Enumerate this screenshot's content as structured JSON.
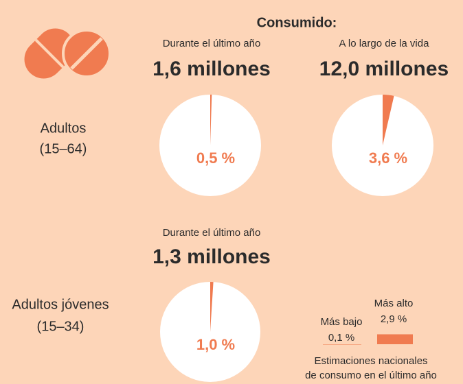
{
  "header": {
    "title": "Consumido:"
  },
  "rows": [
    {
      "label_lines": [
        "Adultos",
        "(15–64)"
      ]
    },
    {
      "label_lines": [
        "Adultos jóvenes",
        "(15–34)"
      ]
    }
  ],
  "chart_data": [
    {
      "type": "pie",
      "subtitle": "Durante el último año",
      "title": "1,6 millones",
      "values": [
        0.5
      ],
      "value_labels": [
        "0,5 %"
      ],
      "colors": [
        "#f07b50"
      ]
    },
    {
      "type": "pie",
      "subtitle": "A lo largo de la vida",
      "title": "12,0 millones",
      "values": [
        3.6
      ],
      "value_labels": [
        "3,6 %"
      ],
      "colors": [
        "#f07b50"
      ]
    },
    {
      "type": "pie",
      "subtitle": "Durante el último año",
      "title": "1,3 millones",
      "values": [
        1.0
      ],
      "value_labels": [
        "1,0 %"
      ],
      "colors": [
        "#f07b50"
      ]
    }
  ],
  "legend": {
    "low_name": "Más bajo",
    "low_value": 0.1,
    "low_value_label": "0,1 %",
    "high_name": "Más alto",
    "high_value": 2.9,
    "high_value_label": "2,9 %",
    "color": "#f07b50",
    "caption_lines": [
      "Estimaciones nacionales",
      "de consumo en el último año"
    ]
  }
}
